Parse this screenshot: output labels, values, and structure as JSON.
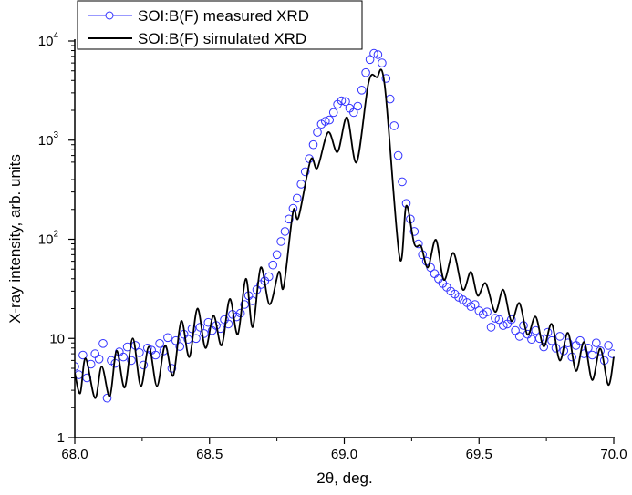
{
  "chart_data": {
    "type": "line",
    "title": "",
    "xlabel": "2θ, deg.",
    "ylabel": "X-ray intensity, arb. units",
    "xlim": [
      68.0,
      70.0
    ],
    "ylim": [
      1,
      10000
    ],
    "yscale": "log",
    "grid": false,
    "legend_position": "top-left",
    "x_ticks": [
      {
        "value": 68.0,
        "label": "68.0"
      },
      {
        "value": 68.5,
        "label": "68.5"
      },
      {
        "value": 69.0,
        "label": "69.0"
      },
      {
        "value": 69.5,
        "label": "69.5"
      },
      {
        "value": 70.0,
        "label": "70.0"
      }
    ],
    "y_ticks": [
      {
        "value": 1,
        "base": "1",
        "exp": ""
      },
      {
        "value": 10,
        "base": "10",
        "exp": ""
      },
      {
        "value": 100,
        "base": "10",
        "exp": "2"
      },
      {
        "value": 1000,
        "base": "10",
        "exp": "3"
      },
      {
        "value": 10000,
        "base": "10",
        "exp": "4"
      }
    ],
    "series": [
      {
        "name": "SOI:B(F) measured XRD",
        "style": "circles",
        "color": "#3333ff",
        "points": [
          [
            68.0,
            5.2
          ],
          [
            68.015,
            4.3
          ],
          [
            68.03,
            6.8
          ],
          [
            68.045,
            4.0
          ],
          [
            68.06,
            5.5
          ],
          [
            68.075,
            7.0
          ],
          [
            68.09,
            6.2
          ],
          [
            68.105,
            8.9
          ],
          [
            68.12,
            2.5
          ],
          [
            68.135,
            6.0
          ],
          [
            68.15,
            5.6
          ],
          [
            68.165,
            7.3
          ],
          [
            68.18,
            6.5
          ],
          [
            68.195,
            8.2
          ],
          [
            68.21,
            6.0
          ],
          [
            68.225,
            8.5
          ],
          [
            68.24,
            7.2
          ],
          [
            68.255,
            5.4
          ],
          [
            68.27,
            8.0
          ],
          [
            68.285,
            7.6
          ],
          [
            68.3,
            6.8
          ],
          [
            68.315,
            8.9
          ],
          [
            68.33,
            7.5
          ],
          [
            68.345,
            10.2
          ],
          [
            68.36,
            5.0
          ],
          [
            68.375,
            9.5
          ],
          [
            68.39,
            8.3
          ],
          [
            68.405,
            11.0
          ],
          [
            68.42,
            9.8
          ],
          [
            68.435,
            12.5
          ],
          [
            68.45,
            10.0
          ],
          [
            68.465,
            13.0
          ],
          [
            68.48,
            11.2
          ],
          [
            68.495,
            14.5
          ],
          [
            68.51,
            12.0
          ],
          [
            68.525,
            13.5
          ],
          [
            68.54,
            12.6
          ],
          [
            68.555,
            15.5
          ],
          [
            68.57,
            14.0
          ],
          [
            68.585,
            17.5
          ],
          [
            68.6,
            16.5
          ],
          [
            68.615,
            18.0
          ],
          [
            68.63,
            22.0
          ],
          [
            68.645,
            27.0
          ],
          [
            68.66,
            24.0
          ],
          [
            68.675,
            31.0
          ],
          [
            68.69,
            35.0
          ],
          [
            68.705,
            38.0
          ],
          [
            68.72,
            42.0
          ],
          [
            68.735,
            55.0
          ],
          [
            68.75,
            70.0
          ],
          [
            68.765,
            95.0
          ],
          [
            68.78,
            120.0
          ],
          [
            68.795,
            160.0
          ],
          [
            68.81,
            205.0
          ],
          [
            68.825,
            260.0
          ],
          [
            68.84,
            360.0
          ],
          [
            68.855,
            480.0
          ],
          [
            68.87,
            650.0
          ],
          [
            68.885,
            900.0
          ],
          [
            68.9,
            1200.0
          ],
          [
            68.915,
            1450.0
          ],
          [
            68.93,
            1550.0
          ],
          [
            68.945,
            1600.0
          ],
          [
            68.96,
            1900.0
          ],
          [
            68.975,
            2300.0
          ],
          [
            68.99,
            2500.0
          ],
          [
            69.005,
            2450.0
          ],
          [
            69.02,
            2100.0
          ],
          [
            69.035,
            1900.0
          ],
          [
            69.05,
            2200.0
          ],
          [
            69.065,
            3200.0
          ],
          [
            69.08,
            4800.0
          ],
          [
            69.095,
            6500.0
          ],
          [
            69.11,
            7500.0
          ],
          [
            69.125,
            7300.0
          ],
          [
            69.14,
            6000.0
          ],
          [
            69.155,
            4200.0
          ],
          [
            69.17,
            2600.0
          ],
          [
            69.185,
            1400.0
          ],
          [
            69.2,
            700.0
          ],
          [
            69.215,
            380.0
          ],
          [
            69.23,
            230.0
          ],
          [
            69.245,
            160.0
          ],
          [
            69.26,
            120.0
          ],
          [
            69.275,
            90.0
          ],
          [
            69.29,
            70.0
          ],
          [
            69.305,
            60.0
          ],
          [
            69.32,
            52.0
          ],
          [
            69.335,
            45.0
          ],
          [
            69.35,
            40.0
          ],
          [
            69.365,
            36.0
          ],
          [
            69.38,
            33.0
          ],
          [
            69.395,
            30.0
          ],
          [
            69.41,
            28.0
          ],
          [
            69.425,
            26.0
          ],
          [
            69.44,
            24.5
          ],
          [
            69.455,
            23.0
          ],
          [
            69.47,
            21.0
          ],
          [
            69.485,
            22.0
          ],
          [
            69.5,
            19.0
          ],
          [
            69.515,
            17.5
          ],
          [
            69.53,
            18.5
          ],
          [
            69.545,
            13.0
          ],
          [
            69.56,
            16.0
          ],
          [
            69.575,
            15.5
          ],
          [
            69.59,
            13.5
          ],
          [
            69.605,
            14.0
          ],
          [
            69.62,
            15.5
          ],
          [
            69.635,
            12.0
          ],
          [
            69.65,
            10.5
          ],
          [
            69.665,
            13.5
          ],
          [
            69.68,
            11.0
          ],
          [
            69.695,
            9.8
          ],
          [
            69.71,
            12.0
          ],
          [
            69.725,
            10.0
          ],
          [
            69.74,
            8.2
          ],
          [
            69.755,
            11.5
          ],
          [
            69.77,
            9.5
          ],
          [
            69.785,
            8.0
          ],
          [
            69.8,
            10.5
          ],
          [
            69.815,
            7.5
          ],
          [
            69.83,
            9.0
          ],
          [
            69.845,
            6.5
          ],
          [
            69.86,
            8.5
          ],
          [
            69.875,
            9.5
          ],
          [
            69.89,
            7.0
          ],
          [
            69.905,
            8.0
          ],
          [
            69.92,
            6.8
          ],
          [
            69.935,
            9.0
          ],
          [
            69.95,
            7.5
          ],
          [
            69.965,
            6.0
          ],
          [
            69.98,
            8.5
          ],
          [
            69.995,
            7.0
          ]
        ]
      },
      {
        "name": "SOI:B(F) simulated XRD",
        "style": "line",
        "color": "#000000",
        "points": [
          [
            68.0,
            4.5
          ],
          [
            68.02,
            2.8
          ],
          [
            68.04,
            6.3
          ],
          [
            68.075,
            2.5
          ],
          [
            68.1,
            5.2
          ],
          [
            68.13,
            2.6
          ],
          [
            68.155,
            7.5
          ],
          [
            68.185,
            3.2
          ],
          [
            68.215,
            10
          ],
          [
            68.245,
            3.3
          ],
          [
            68.275,
            8.3
          ],
          [
            68.305,
            3.3
          ],
          [
            68.335,
            8.5
          ],
          [
            68.365,
            4.2
          ],
          [
            68.395,
            15
          ],
          [
            68.425,
            6.5
          ],
          [
            68.455,
            20
          ],
          [
            68.485,
            8.0
          ],
          [
            68.515,
            17
          ],
          [
            68.545,
            8.5
          ],
          [
            68.575,
            25
          ],
          [
            68.605,
            11
          ],
          [
            68.635,
            40
          ],
          [
            68.66,
            13
          ],
          [
            68.69,
            52
          ],
          [
            68.723,
            22
          ],
          [
            68.757,
            47
          ],
          [
            68.775,
            33
          ],
          [
            68.81,
            190
          ],
          [
            68.83,
            166
          ],
          [
            68.875,
            630
          ],
          [
            68.9,
            525
          ],
          [
            68.94,
            1200
          ],
          [
            68.975,
            760
          ],
          [
            69.01,
            1700
          ],
          [
            69.046,
            600
          ],
          [
            69.09,
            3800
          ],
          [
            69.12,
            4300
          ],
          [
            69.15,
            3600
          ],
          [
            69.205,
            66
          ],
          [
            69.23,
            218
          ],
          [
            69.26,
            90
          ],
          [
            69.285,
            85
          ],
          [
            69.31,
            52
          ],
          [
            69.34,
            99
          ],
          [
            69.37,
            39
          ],
          [
            69.405,
            73
          ],
          [
            69.44,
            31
          ],
          [
            69.47,
            47
          ],
          [
            69.495,
            27
          ],
          [
            69.525,
            36
          ],
          [
            69.56,
            18.5
          ],
          [
            69.59,
            31
          ],
          [
            69.62,
            15
          ],
          [
            69.65,
            22.7
          ],
          [
            69.68,
            10.9
          ],
          [
            69.71,
            16.6
          ],
          [
            69.74,
            8.3
          ],
          [
            69.77,
            14
          ],
          [
            69.8,
            6.0
          ],
          [
            69.83,
            11.4
          ],
          [
            69.86,
            4.7
          ],
          [
            69.89,
            9.2
          ],
          [
            69.92,
            3.8
          ],
          [
            69.95,
            7.9
          ],
          [
            69.98,
            3.4
          ],
          [
            70.0,
            6.5
          ]
        ]
      }
    ]
  }
}
